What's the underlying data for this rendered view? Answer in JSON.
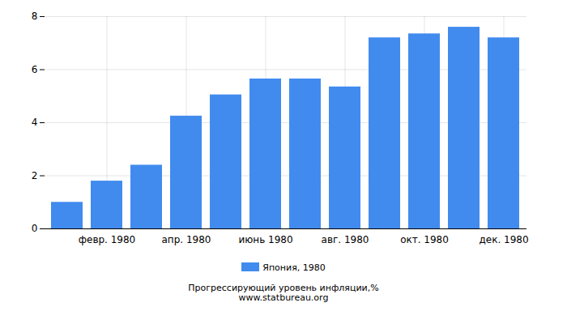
{
  "chart_data": {
    "type": "bar",
    "title": "Прогрессирующий уровень инфляции,%",
    "subtitle": "www.statbureau.org",
    "categories": [
      null,
      "февр. 1980",
      null,
      "апр. 1980",
      null,
      "июнь 1980",
      null,
      "авг. 1980",
      null,
      "окт. 1980",
      null,
      "дек. 1980"
    ],
    "series": [
      {
        "name": "Япония, 1980",
        "color": "#418bef",
        "values": [
          1.0,
          1.8,
          2.4,
          4.25,
          5.05,
          5.65,
          5.65,
          5.35,
          7.2,
          7.35,
          7.6,
          7.2
        ]
      }
    ],
    "ylim": [
      0,
      8
    ],
    "yticks": [
      0,
      2,
      4,
      6,
      8
    ],
    "grid": true,
    "legend": "bottom"
  }
}
